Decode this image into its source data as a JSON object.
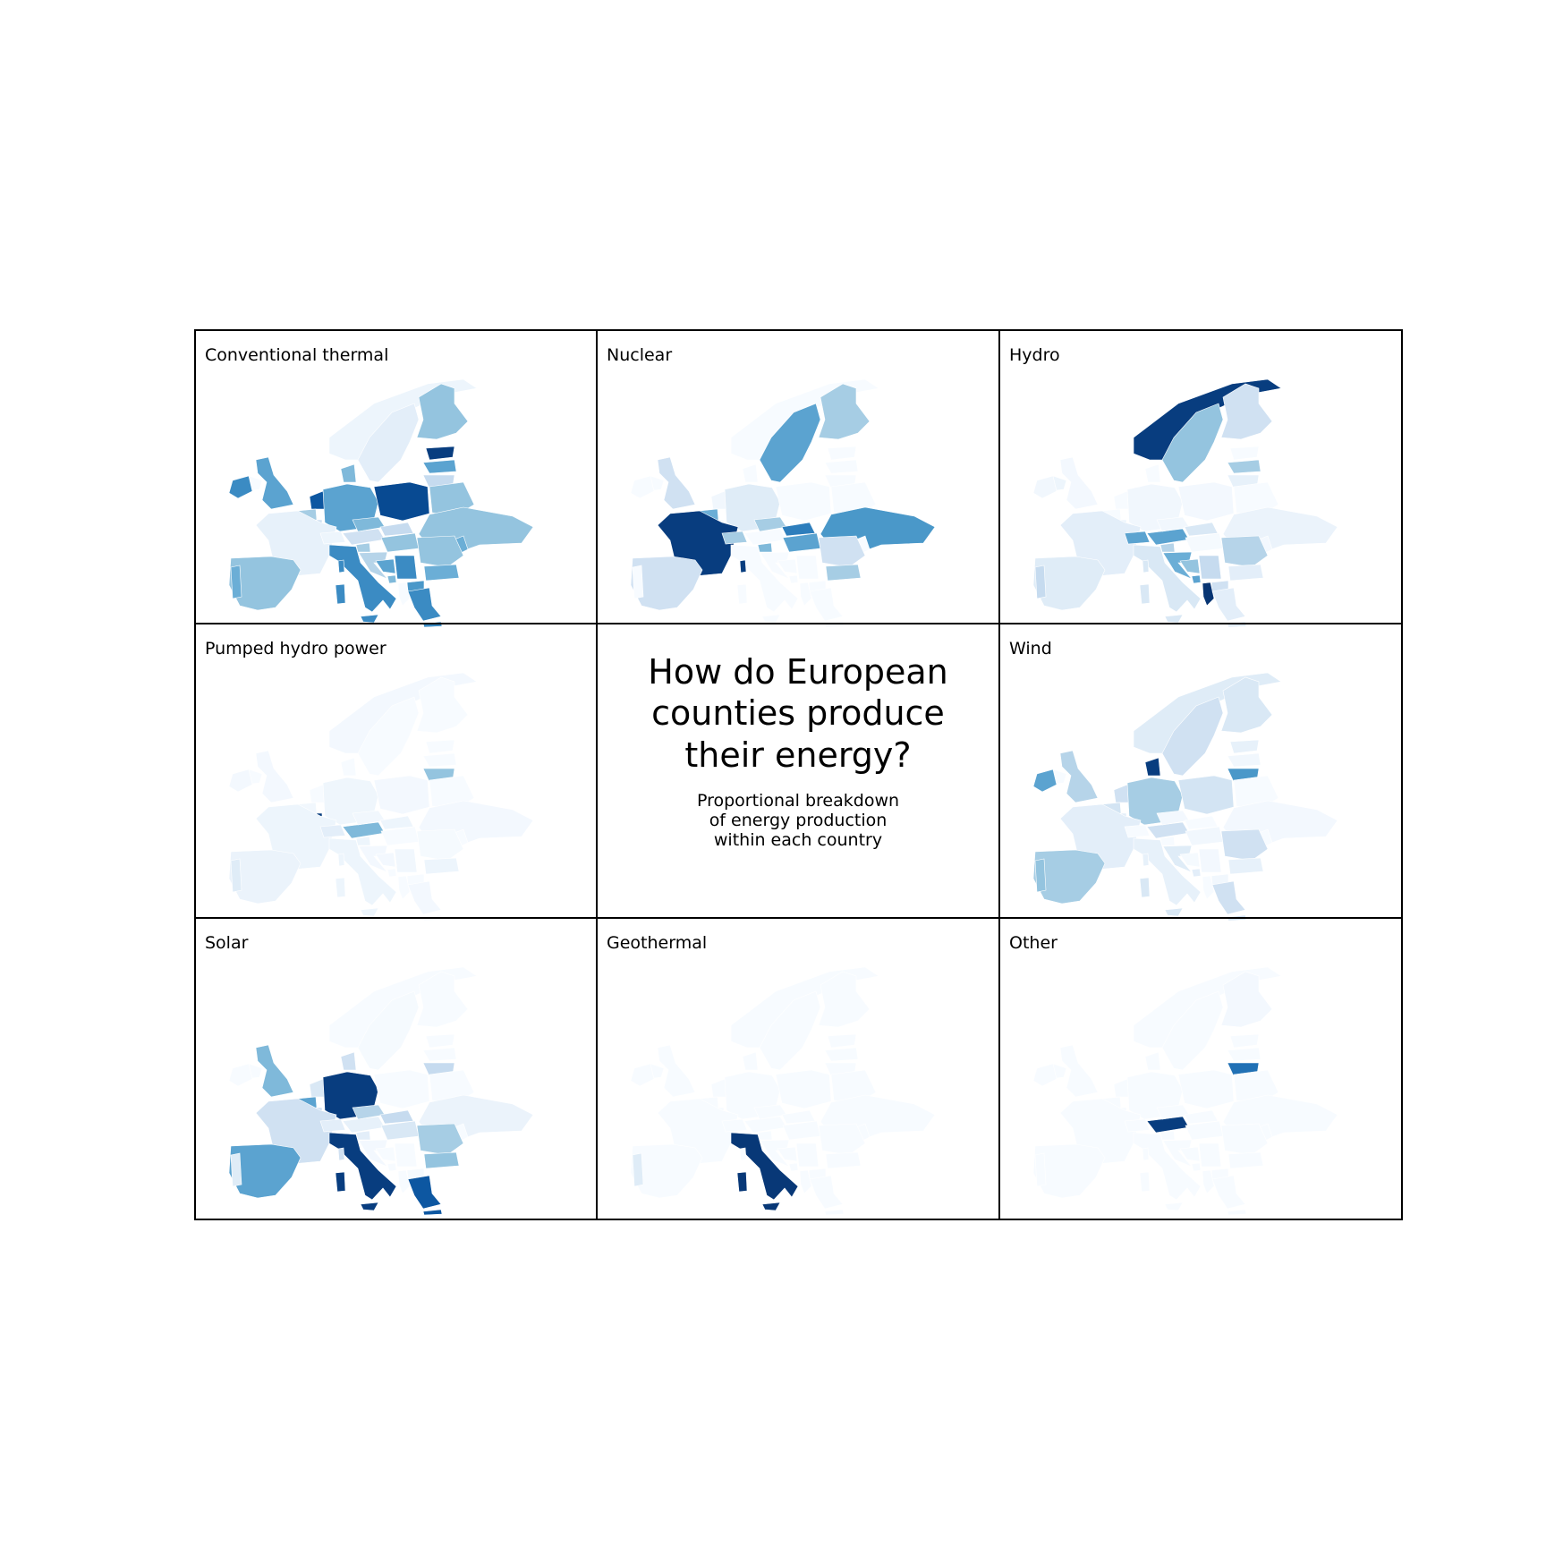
{
  "title_lines": [
    "How do European",
    "counties produce",
    "their energy?"
  ],
  "subtitle_lines": [
    "Proportional breakdown",
    "of energy production",
    "within each country"
  ],
  "colormap": {
    "name": "Blues",
    "stops": [
      "#f7fbff",
      "#deebf7",
      "#c6dbef",
      "#9ecae1",
      "#6baed6",
      "#4292c6",
      "#2171b5",
      "#08519c",
      "#08306b"
    ]
  },
  "chart_data": {
    "type": "choropleth",
    "region": "Europe",
    "value_meaning": "share of the country's energy production (0-1)",
    "panels": [
      {
        "label": "Conventional thermal",
        "values": {
          "Norway": 0.05,
          "Sweden": 0.1,
          "Finland": 0.4,
          "Estonia": 0.95,
          "Latvia": 0.55,
          "Lithuania": 0.25,
          "Iceland": 0.0,
          "Ireland": 0.65,
          "United Kingdom": 0.55,
          "Denmark": 0.45,
          "Netherlands": 0.85,
          "Belgium": 0.35,
          "Luxembourg": 0.2,
          "Germany": 0.55,
          "Poland": 0.9,
          "France": 0.08,
          "Switzerland": 0.05,
          "Austria": 0.2,
          "Czechia": 0.45,
          "Slovakia": 0.25,
          "Hungary": 0.4,
          "Belarus": 0.4,
          "Ukraine": 0.4,
          "Moldova": 0.5,
          "Romania": 0.4,
          "Bulgaria": 0.5,
          "Slovenia": 0.35,
          "Croatia": 0.3,
          "Bosnia": 0.55,
          "Serbia": 0.65,
          "Montenegro": 0.45,
          "North Macedonia": 0.6,
          "Albania": 0.0,
          "Greece": 0.65,
          "Italy": 0.65,
          "Sicily": 0.65,
          "Sardinia": 0.65,
          "Corsica": 0.65,
          "Spain": 0.4,
          "Portugal": 0.5,
          "Crete": 0.65
        }
      },
      {
        "label": "Nuclear",
        "values": {
          "Norway": 0.0,
          "Sweden": 0.55,
          "Finland": 0.35,
          "Estonia": 0.0,
          "Latvia": 0.0,
          "Lithuania": 0.0,
          "Iceland": 0.0,
          "Ireland": 0.0,
          "United Kingdom": 0.2,
          "Denmark": 0.0,
          "Netherlands": 0.03,
          "Belgium": 0.5,
          "Luxembourg": 0.0,
          "Germany": 0.12,
          "Poland": 0.0,
          "France": 0.95,
          "Switzerland": 0.35,
          "Austria": 0.0,
          "Czechia": 0.35,
          "Slovakia": 0.7,
          "Hungary": 0.55,
          "Belarus": 0.0,
          "Ukraine": 0.6,
          "Moldova": 0.0,
          "Romania": 0.2,
          "Bulgaria": 0.35,
          "Slovenia": 0.45,
          "Croatia": 0.0,
          "Bosnia": 0.0,
          "Serbia": 0.0,
          "Montenegro": 0.0,
          "North Macedonia": 0.0,
          "Albania": 0.0,
          "Greece": 0.0,
          "Italy": 0.0,
          "Sicily": 0.0,
          "Sardinia": 0.0,
          "Corsica": 0.95,
          "Spain": 0.2,
          "Portugal": 0.0,
          "Crete": 0.0
        }
      },
      {
        "label": "Hydro",
        "values": {
          "Norway": 0.95,
          "Sweden": 0.4,
          "Finland": 0.2,
          "Estonia": 0.0,
          "Latvia": 0.35,
          "Lithuania": 0.08,
          "Iceland": 0.05,
          "Ireland": 0.03,
          "United Kingdom": 0.02,
          "Denmark": 0.0,
          "Netherlands": 0.0,
          "Belgium": 0.0,
          "Luxembourg": 0.05,
          "Germany": 0.03,
          "Poland": 0.02,
          "France": 0.1,
          "Switzerland": 0.55,
          "Austria": 0.55,
          "Czechia": 0.03,
          "Slovakia": 0.15,
          "Hungary": 0.01,
          "Belarus": 0.0,
          "Ukraine": 0.06,
          "Moldova": 0.02,
          "Romania": 0.3,
          "Bulgaria": 0.1,
          "Slovenia": 0.3,
          "Croatia": 0.5,
          "Bosnia": 0.4,
          "Serbia": 0.25,
          "Montenegro": 0.55,
          "North Macedonia": 0.2,
          "Albania": 0.98,
          "Greece": 0.1,
          "Italy": 0.15,
          "Sicily": 0.15,
          "Sardinia": 0.15,
          "Corsica": 0.15,
          "Spain": 0.12,
          "Portugal": 0.25,
          "Crete": 0.1
        }
      },
      {
        "label": "Pumped hydro power",
        "values": {
          "Norway": 0.02,
          "Sweden": 0.0,
          "Finland": 0.0,
          "Estonia": 0.0,
          "Latvia": 0.0,
          "Lithuania": 0.4,
          "Iceland": 0.0,
          "Ireland": 0.02,
          "United Kingdom": 0.02,
          "Denmark": 0.0,
          "Netherlands": 0.0,
          "Belgium": 0.03,
          "Luxembourg": 0.95,
          "Germany": 0.04,
          "Poland": 0.02,
          "France": 0.05,
          "Switzerland": 0.1,
          "Austria": 0.45,
          "Czechia": 0.03,
          "Slovakia": 0.05,
          "Hungary": 0.0,
          "Belarus": 0.0,
          "Ukraine": 0.02,
          "Moldova": 0.0,
          "Romania": 0.01,
          "Bulgaria": 0.05,
          "Slovenia": 0.05,
          "Croatia": 0.02,
          "Bosnia": 0.02,
          "Serbia": 0.03,
          "Montenegro": 0.0,
          "North Macedonia": 0.0,
          "Albania": 0.0,
          "Greece": 0.02,
          "Italy": 0.05,
          "Sicily": 0.05,
          "Sardinia": 0.05,
          "Corsica": 0.05,
          "Spain": 0.06,
          "Portugal": 0.12,
          "Crete": 0.0
        }
      },
      {
        "label": "Wind",
        "values": {
          "Norway": 0.12,
          "Sweden": 0.2,
          "Finland": 0.15,
          "Estonia": 0.08,
          "Latvia": 0.03,
          "Lithuania": 0.6,
          "Iceland": 0.0,
          "Ireland": 0.55,
          "United Kingdom": 0.3,
          "Denmark": 0.95,
          "Netherlands": 0.2,
          "Belgium": 0.18,
          "Luxembourg": 0.1,
          "Germany": 0.35,
          "Poland": 0.18,
          "France": 0.1,
          "Switzerland": 0.0,
          "Austria": 0.2,
          "Czechia": 0.02,
          "Slovakia": 0.0,
          "Hungary": 0.03,
          "Belarus": 0.0,
          "Ukraine": 0.02,
          "Moldova": 0.0,
          "Romania": 0.2,
          "Bulgaria": 0.08,
          "Slovenia": 0.0,
          "Croatia": 0.12,
          "Bosnia": 0.01,
          "Serbia": 0.02,
          "Montenegro": 0.1,
          "North Macedonia": 0.03,
          "Albania": 0.0,
          "Greece": 0.2,
          "Italy": 0.08,
          "Sicily": 0.15,
          "Sardinia": 0.15,
          "Corsica": 0.08,
          "Spain": 0.35,
          "Portugal": 0.4,
          "Crete": 0.2
        }
      },
      {
        "label": "Solar",
        "values": {
          "Norway": 0.0,
          "Sweden": 0.01,
          "Finland": 0.0,
          "Estonia": 0.0,
          "Latvia": 0.0,
          "Lithuania": 0.25,
          "Iceland": 0.0,
          "Ireland": 0.0,
          "United Kingdom": 0.45,
          "Denmark": 0.2,
          "Netherlands": 0.15,
          "Belgium": 0.55,
          "Luxembourg": 0.2,
          "Germany": 0.95,
          "Poland": 0.0,
          "France": 0.2,
          "Switzerland": 0.1,
          "Austria": 0.08,
          "Czechia": 0.3,
          "Slovakia": 0.25,
          "Hungary": 0.15,
          "Belarus": 0.0,
          "Ukraine": 0.06,
          "Moldova": 0.0,
          "Romania": 0.35,
          "Bulgaria": 0.4,
          "Slovenia": 0.1,
          "Croatia": 0.02,
          "Bosnia": 0.0,
          "Serbia": 0.0,
          "Montenegro": 0.0,
          "North Macedonia": 0.01,
          "Albania": 0.0,
          "Greece": 0.85,
          "Italy": 0.95,
          "Sicily": 0.95,
          "Sardinia": 0.95,
          "Corsica": 0.2,
          "Spain": 0.55,
          "Portugal": 0.12,
          "Crete": 0.85
        }
      },
      {
        "label": "Geothermal",
        "values": {
          "Norway": 0.0,
          "Sweden": 0.0,
          "Finland": 0.0,
          "Estonia": 0.0,
          "Latvia": 0.0,
          "Lithuania": 0.0,
          "Iceland": 0.0,
          "Ireland": 0.0,
          "United Kingdom": 0.0,
          "Denmark": 0.0,
          "Netherlands": 0.0,
          "Belgium": 0.0,
          "Luxembourg": 0.0,
          "Germany": 0.0,
          "Poland": 0.0,
          "France": 0.0,
          "Switzerland": 0.0,
          "Austria": 0.0,
          "Czechia": 0.0,
          "Slovakia": 0.0,
          "Hungary": 0.0,
          "Belarus": 0.0,
          "Ukraine": 0.0,
          "Moldova": 0.0,
          "Romania": 0.0,
          "Bulgaria": 0.0,
          "Slovenia": 0.0,
          "Croatia": 0.0,
          "Bosnia": 0.0,
          "Serbia": 0.0,
          "Montenegro": 0.0,
          "North Macedonia": 0.0,
          "Albania": 0.0,
          "Greece": 0.0,
          "Italy": 0.97,
          "Sicily": 0.97,
          "Sardinia": 0.97,
          "Corsica": 0.0,
          "Spain": 0.0,
          "Portugal": 0.12,
          "Crete": 0.0
        }
      },
      {
        "label": "Other",
        "values": {
          "Norway": 0.0,
          "Sweden": 0.0,
          "Finland": 0.02,
          "Estonia": 0.0,
          "Latvia": 0.0,
          "Lithuania": 0.75,
          "Iceland": 0.0,
          "Ireland": 0.0,
          "United Kingdom": 0.0,
          "Denmark": 0.0,
          "Netherlands": 0.0,
          "Belgium": 0.0,
          "Luxembourg": 0.0,
          "Germany": 0.0,
          "Poland": 0.0,
          "France": 0.0,
          "Switzerland": 0.0,
          "Austria": 0.95,
          "Czechia": 0.0,
          "Slovakia": 0.0,
          "Hungary": 0.0,
          "Belarus": 0.0,
          "Ukraine": 0.0,
          "Moldova": 0.0,
          "Romania": 0.0,
          "Bulgaria": 0.0,
          "Slovenia": 0.0,
          "Croatia": 0.0,
          "Bosnia": 0.0,
          "Serbia": 0.0,
          "Montenegro": 0.0,
          "North Macedonia": 0.0,
          "Albania": 0.0,
          "Greece": 0.0,
          "Italy": 0.0,
          "Sicily": 0.0,
          "Sardinia": 0.0,
          "Corsica": 0.0,
          "Spain": 0.0,
          "Portugal": 0.0,
          "Crete": 0.0
        }
      }
    ]
  }
}
